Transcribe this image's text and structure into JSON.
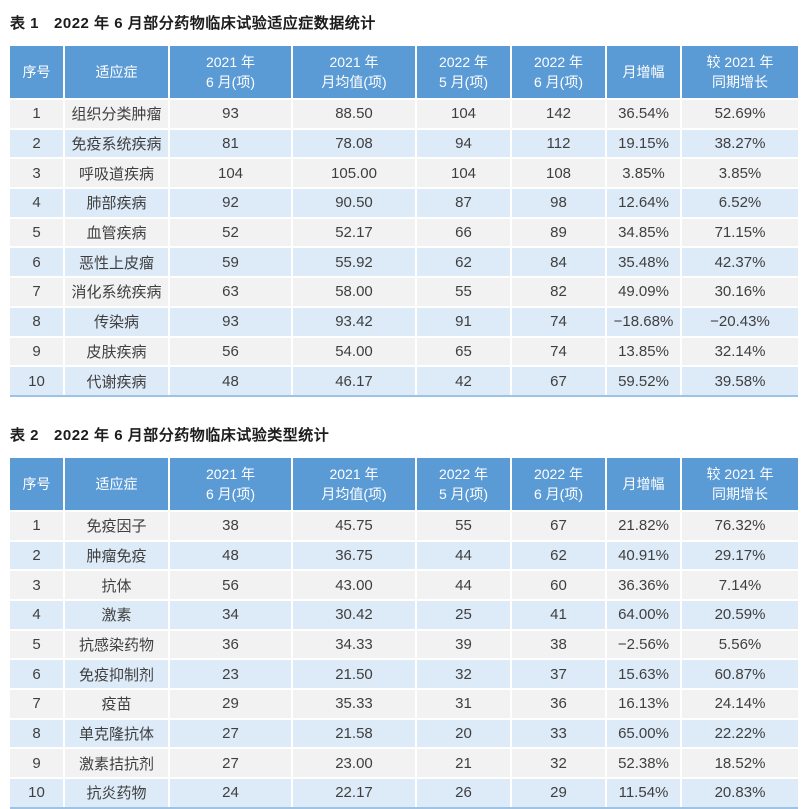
{
  "colors": {
    "header_bg": "#5B9BD5",
    "header_text": "#FFFFFF",
    "row_odd_bg": "#F2F2F2",
    "row_even_bg": "#DDEAF7",
    "bottom_border": "#9DC3E6",
    "body_text": "#3F3F3F",
    "title_text": "#1C1C1C"
  },
  "tables": [
    {
      "label": "表 1",
      "title": "2022 年 6 月部分药物临床试验适应症数据统计",
      "column_headers": [
        [
          "序号"
        ],
        [
          "适应症"
        ],
        [
          "2021 年",
          "6 月(项)"
        ],
        [
          "2021 年",
          "月均值(项)"
        ],
        [
          "2022 年",
          "5 月(项)"
        ],
        [
          "2022 年",
          "6 月(项)"
        ],
        [
          "月增幅"
        ],
        [
          "较 2021 年",
          "同期增长"
        ]
      ],
      "rows": [
        [
          "1",
          "组织分类肿瘤",
          "93",
          "88.50",
          "104",
          "142",
          "36.54%",
          "52.69%"
        ],
        [
          "2",
          "免疫系统疾病",
          "81",
          "78.08",
          "94",
          "112",
          "19.15%",
          "38.27%"
        ],
        [
          "3",
          "呼吸道疾病",
          "104",
          "105.00",
          "104",
          "108",
          "3.85%",
          "3.85%"
        ],
        [
          "4",
          "肺部疾病",
          "92",
          "90.50",
          "87",
          "98",
          "12.64%",
          "6.52%"
        ],
        [
          "5",
          "血管疾病",
          "52",
          "52.17",
          "66",
          "89",
          "34.85%",
          "71.15%"
        ],
        [
          "6",
          "恶性上皮瘤",
          "59",
          "55.92",
          "62",
          "84",
          "35.48%",
          "42.37%"
        ],
        [
          "7",
          "消化系统疾病",
          "63",
          "58.00",
          "55",
          "82",
          "49.09%",
          "30.16%"
        ],
        [
          "8",
          "传染病",
          "93",
          "93.42",
          "91",
          "74",
          "−18.68%",
          "−20.43%"
        ],
        [
          "9",
          "皮肤疾病",
          "56",
          "54.00",
          "65",
          "74",
          "13.85%",
          "32.14%"
        ],
        [
          "10",
          "代谢疾病",
          "48",
          "46.17",
          "42",
          "67",
          "59.52%",
          "39.58%"
        ]
      ]
    },
    {
      "label": "表 2",
      "title": "2022 年 6 月部分药物临床试验类型统计",
      "column_headers": [
        [
          "序号"
        ],
        [
          "适应症"
        ],
        [
          "2021 年",
          "6 月(项)"
        ],
        [
          "2021 年",
          "月均值(项)"
        ],
        [
          "2022 年",
          "5 月(项)"
        ],
        [
          "2022 年",
          "6 月(项)"
        ],
        [
          "月增幅"
        ],
        [
          "较 2021 年",
          "同期增长"
        ]
      ],
      "rows": [
        [
          "1",
          "免疫因子",
          "38",
          "45.75",
          "55",
          "67",
          "21.82%",
          "76.32%"
        ],
        [
          "2",
          "肿瘤免疫",
          "48",
          "36.75",
          "44",
          "62",
          "40.91%",
          "29.17%"
        ],
        [
          "3",
          "抗体",
          "56",
          "43.00",
          "44",
          "60",
          "36.36%",
          "7.14%"
        ],
        [
          "4",
          "激素",
          "34",
          "30.42",
          "25",
          "41",
          "64.00%",
          "20.59%"
        ],
        [
          "5",
          "抗感染药物",
          "36",
          "34.33",
          "39",
          "38",
          "−2.56%",
          "5.56%"
        ],
        [
          "6",
          "免疫抑制剂",
          "23",
          "21.50",
          "32",
          "37",
          "15.63%",
          "60.87%"
        ],
        [
          "7",
          "疫苗",
          "29",
          "35.33",
          "31",
          "36",
          "16.13%",
          "24.14%"
        ],
        [
          "8",
          "单克隆抗体",
          "27",
          "21.58",
          "20",
          "33",
          "65.00%",
          "22.22%"
        ],
        [
          "9",
          "激素拮抗剂",
          "27",
          "23.00",
          "21",
          "32",
          "52.38%",
          "18.52%"
        ],
        [
          "10",
          "抗炎药物",
          "24",
          "22.17",
          "26",
          "29",
          "11.54%",
          "20.83%"
        ]
      ]
    }
  ]
}
